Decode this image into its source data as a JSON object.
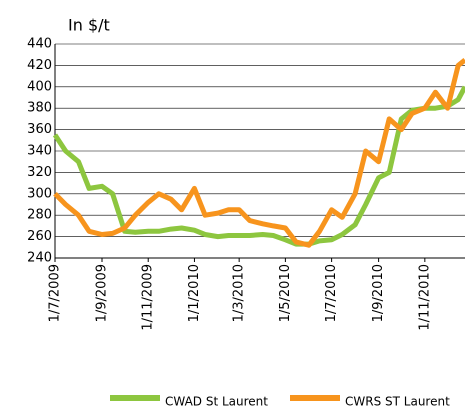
{
  "chart_data": {
    "type": "line",
    "title": "In $/t",
    "x": [
      "2009-07-01",
      "2009-07-15",
      "2009-08-01",
      "2009-08-15",
      "2009-09-01",
      "2009-09-15",
      "2009-10-01",
      "2009-10-15",
      "2009-11-01",
      "2009-11-15",
      "2009-12-01",
      "2009-12-15",
      "2010-01-01",
      "2010-01-15",
      "2010-02-01",
      "2010-02-15",
      "2010-03-01",
      "2010-03-15",
      "2010-04-01",
      "2010-04-15",
      "2010-05-01",
      "2010-05-15",
      "2010-06-01",
      "2010-06-15",
      "2010-07-01",
      "2010-07-15",
      "2010-08-01",
      "2010-08-15",
      "2010-09-01",
      "2010-09-15",
      "2010-10-01",
      "2010-10-15",
      "2010-11-01",
      "2010-11-15",
      "2010-12-01",
      "2010-12-15",
      "2010-12-24"
    ],
    "series": [
      {
        "name": "CWAD St Laurent",
        "color": "#8dc63f",
        "values": [
          355,
          340,
          330,
          305,
          307,
          300,
          265,
          264,
          265,
          265,
          267,
          268,
          266,
          262,
          260,
          261,
          261,
          261,
          262,
          261,
          257,
          253,
          253,
          256,
          257,
          262,
          271,
          290,
          315,
          320,
          370,
          378,
          380,
          380,
          382,
          388,
          400
        ]
      },
      {
        "name": "CWRS ST Laurent",
        "color": "#f7941d",
        "values": [
          300,
          290,
          280,
          265,
          262,
          263,
          268,
          280,
          292,
          300,
          295,
          285,
          305,
          280,
          282,
          285,
          285,
          275,
          272,
          270,
          268,
          255,
          252,
          265,
          285,
          278,
          300,
          340,
          330,
          370,
          360,
          375,
          380,
          395,
          380,
          420,
          425
        ]
      }
    ],
    "xlim": [
      "2009-07-01",
      "2010-12-24"
    ],
    "xticks": [
      {
        "value": "2009-07-01",
        "label": "1/7/2009"
      },
      {
        "value": "2009-09-01",
        "label": "1/9/2009"
      },
      {
        "value": "2009-11-01",
        "label": "1/11/2009"
      },
      {
        "value": "2010-01-01",
        "label": "1/1/2010"
      },
      {
        "value": "2010-03-01",
        "label": "1/3/2010"
      },
      {
        "value": "2010-05-01",
        "label": "1/5/2010"
      },
      {
        "value": "2010-07-01",
        "label": "1/7/2010"
      },
      {
        "value": "2010-09-01",
        "label": "1/9/2010"
      },
      {
        "value": "2010-11-01",
        "label": "1/11/2010"
      }
    ],
    "ylim": [
      240,
      440
    ],
    "yticks": [
      240,
      260,
      280,
      300,
      320,
      340,
      360,
      380,
      400,
      420,
      440
    ],
    "grid": true,
    "legend": "bottom"
  }
}
